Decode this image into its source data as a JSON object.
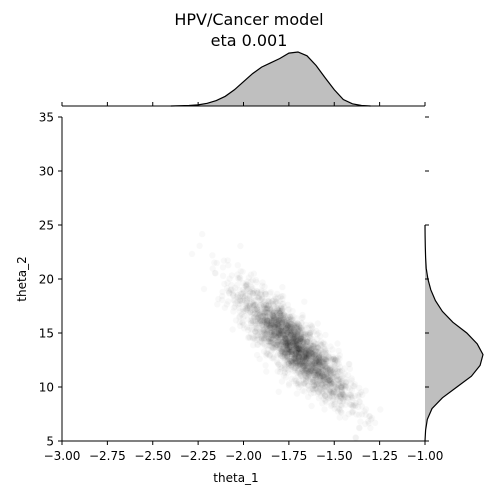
{
  "chart_data": {
    "type": "scatter",
    "title": "HPV/Cancer model",
    "subtitle": "eta 0.001",
    "xlabel": "theta_1",
    "ylabel": "theta_2",
    "xlim": [
      -3.0,
      -1.0
    ],
    "ylim": [
      5,
      35
    ],
    "x_ticks": [
      -3.0,
      -2.75,
      -2.5,
      -2.25,
      -2.0,
      -1.75,
      -1.5,
      -1.25,
      -1.0
    ],
    "x_tick_labels": [
      "−3.00",
      "−2.75",
      "−2.50",
      "−2.25",
      "−2.00",
      "−1.75",
      "−1.50",
      "−1.25",
      "−1.00"
    ],
    "y_ticks": [
      5,
      10,
      15,
      20,
      25,
      30,
      35
    ],
    "y_tick_labels": [
      "5",
      "10",
      "15",
      "20",
      "25",
      "30",
      "35"
    ],
    "grid": false,
    "point_color": "#000000",
    "marginal_fill": "#bfbfbf",
    "marginal_line": "#000000",
    "distribution": {
      "x_mean": -1.72,
      "x_sd": 0.15,
      "y_mean": 13.8,
      "y_sd": 2.6,
      "correlation": -0.85
    },
    "marginal_x": {
      "x": [
        -2.4,
        -2.3,
        -2.25,
        -2.2,
        -2.15,
        -2.1,
        -2.05,
        -2.0,
        -1.95,
        -1.9,
        -1.85,
        -1.8,
        -1.75,
        -1.7,
        -1.65,
        -1.6,
        -1.55,
        -1.5,
        -1.45,
        -1.4,
        -1.35,
        -1.3
      ],
      "density": [
        0.0,
        0.01,
        0.02,
        0.05,
        0.1,
        0.18,
        0.3,
        0.45,
        0.6,
        0.72,
        0.8,
        0.88,
        0.98,
        1.0,
        0.93,
        0.75,
        0.52,
        0.3,
        0.12,
        0.04,
        0.01,
        0.0
      ]
    },
    "marginal_y": {
      "y": [
        5,
        6,
        7,
        8,
        9,
        10,
        11,
        12,
        13,
        14,
        15,
        16,
        17,
        18,
        19,
        20,
        21,
        22,
        23,
        24,
        25
      ],
      "density": [
        0.0,
        0.01,
        0.04,
        0.12,
        0.3,
        0.55,
        0.8,
        0.95,
        1.0,
        0.9,
        0.72,
        0.48,
        0.3,
        0.18,
        0.1,
        0.05,
        0.02,
        0.01,
        0.005,
        0.002,
        0.0
      ]
    }
  }
}
